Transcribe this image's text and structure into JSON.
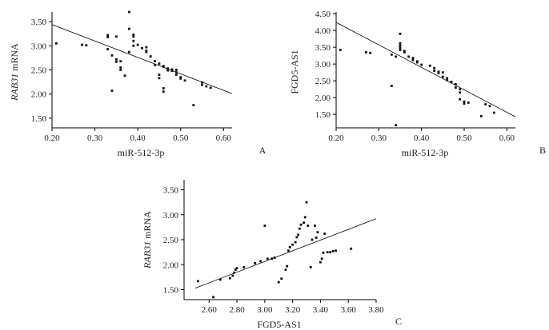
{
  "chart_data": [
    {
      "type": "scatter",
      "panel": "A",
      "xlabel": "miR-512-3p",
      "ylabel_parts": [
        {
          "text": "RAB31",
          "italic": true
        },
        {
          "text": " mRNA",
          "italic": false
        }
      ],
      "xlim": [
        0.2,
        0.62
      ],
      "ylim": [
        1.3,
        3.7
      ],
      "xticks": [
        0.2,
        0.3,
        0.4,
        0.5,
        0.6
      ],
      "xtick_labels": [
        "0.20",
        "0.30",
        "0.40",
        "0.50",
        "0.60"
      ],
      "yticks": [
        1.5,
        2.0,
        2.5,
        3.0,
        3.5
      ],
      "ytick_labels": [
        "1.50",
        "2.00",
        "2.50",
        "3.00",
        "3.50"
      ],
      "fit_line": {
        "x": [
          0.2,
          0.62
        ],
        "y": [
          3.44,
          2.01
        ]
      },
      "points": [
        [
          0.21,
          3.05
        ],
        [
          0.27,
          3.02
        ],
        [
          0.28,
          3.01
        ],
        [
          0.33,
          3.22
        ],
        [
          0.33,
          3.18
        ],
        [
          0.33,
          2.93
        ],
        [
          0.34,
          2.8
        ],
        [
          0.34,
          2.07
        ],
        [
          0.35,
          3.19
        ],
        [
          0.35,
          2.72
        ],
        [
          0.35,
          2.67
        ],
        [
          0.36,
          2.68
        ],
        [
          0.36,
          2.5
        ],
        [
          0.36,
          2.55
        ],
        [
          0.37,
          2.38
        ],
        [
          0.38,
          3.7
        ],
        [
          0.38,
          3.35
        ],
        [
          0.38,
          2.87
        ],
        [
          0.39,
          3.23
        ],
        [
          0.39,
          3.19
        ],
        [
          0.39,
          3.1
        ],
        [
          0.39,
          3.0
        ],
        [
          0.4,
          3.02
        ],
        [
          0.41,
          2.95
        ],
        [
          0.42,
          2.97
        ],
        [
          0.42,
          2.9
        ],
        [
          0.42,
          2.87
        ],
        [
          0.43,
          2.78
        ],
        [
          0.44,
          2.68
        ],
        [
          0.44,
          2.6
        ],
        [
          0.45,
          2.63
        ],
        [
          0.45,
          2.4
        ],
        [
          0.45,
          2.33
        ],
        [
          0.46,
          2.58
        ],
        [
          0.46,
          2.57
        ],
        [
          0.46,
          2.12
        ],
        [
          0.46,
          2.05
        ],
        [
          0.47,
          2.53
        ],
        [
          0.47,
          2.49
        ],
        [
          0.48,
          2.51
        ],
        [
          0.48,
          2.48
        ],
        [
          0.49,
          2.5
        ],
        [
          0.49,
          2.45
        ],
        [
          0.49,
          2.4
        ],
        [
          0.5,
          2.35
        ],
        [
          0.5,
          2.32
        ],
        [
          0.51,
          2.28
        ],
        [
          0.53,
          1.77
        ],
        [
          0.55,
          2.24
        ],
        [
          0.55,
          2.19
        ],
        [
          0.56,
          2.16
        ],
        [
          0.57,
          2.13
        ]
      ]
    },
    {
      "type": "scatter",
      "panel": "B",
      "xlabel": "miR-512-3p",
      "ylabel_parts": [
        {
          "text": "FGD5-AS1",
          "italic": false
        }
      ],
      "xlim": [
        0.2,
        0.62
      ],
      "ylim": [
        1.1,
        4.55
      ],
      "xticks": [
        0.2,
        0.3,
        0.4,
        0.5,
        0.6
      ],
      "xtick_labels": [
        "0.20",
        "0.30",
        "0.40",
        "0.50",
        "0.60"
      ],
      "yticks": [
        1.5,
        2.0,
        2.5,
        3.0,
        3.5,
        4.0,
        4.5
      ],
      "ytick_labels": [
        "1.50",
        "2.00",
        "2.50",
        "3.00",
        "3.50",
        "4.00",
        "4.50"
      ],
      "fit_line": {
        "x": [
          0.2,
          0.62
        ],
        "y": [
          4.24,
          1.43
        ]
      },
      "points": [
        [
          0.21,
          3.42
        ],
        [
          0.27,
          3.35
        ],
        [
          0.28,
          3.33
        ],
        [
          0.33,
          3.28
        ],
        [
          0.33,
          2.35
        ],
        [
          0.34,
          3.22
        ],
        [
          0.34,
          1.18
        ],
        [
          0.35,
          3.9
        ],
        [
          0.35,
          3.62
        ],
        [
          0.35,
          3.55
        ],
        [
          0.35,
          3.48
        ],
        [
          0.35,
          3.42
        ],
        [
          0.36,
          3.39
        ],
        [
          0.36,
          3.35
        ],
        [
          0.37,
          3.22
        ],
        [
          0.38,
          3.18
        ],
        [
          0.38,
          3.12
        ],
        [
          0.39,
          3.08
        ],
        [
          0.39,
          3.05
        ],
        [
          0.4,
          2.98
        ],
        [
          0.42,
          2.95
        ],
        [
          0.43,
          2.88
        ],
        [
          0.43,
          2.8
        ],
        [
          0.44,
          2.77
        ],
        [
          0.44,
          2.73
        ],
        [
          0.45,
          2.75
        ],
        [
          0.45,
          2.62
        ],
        [
          0.46,
          2.58
        ],
        [
          0.46,
          2.52
        ],
        [
          0.47,
          2.47
        ],
        [
          0.48,
          2.4
        ],
        [
          0.48,
          2.3
        ],
        [
          0.49,
          2.25
        ],
        [
          0.49,
          2.15
        ],
        [
          0.49,
          1.95
        ],
        [
          0.5,
          1.88
        ],
        [
          0.5,
          1.82
        ],
        [
          0.51,
          1.85
        ],
        [
          0.54,
          1.45
        ],
        [
          0.55,
          1.8
        ],
        [
          0.56,
          1.75
        ],
        [
          0.57,
          1.55
        ]
      ]
    },
    {
      "type": "scatter",
      "panel": "C",
      "xlabel": "FGD5-AS1",
      "ylabel_parts": [
        {
          "text": "RAB31",
          "italic": true
        },
        {
          "text": " mRNA",
          "italic": false
        }
      ],
      "xlim": [
        2.42,
        3.8
      ],
      "ylim": [
        1.3,
        3.7
      ],
      "xticks": [
        2.6,
        2.8,
        3.0,
        3.2,
        3.4,
        3.6,
        3.8
      ],
      "xtick_labels": [
        "2.60",
        "2.80",
        "3.00",
        "3.20",
        "3.40",
        "3.60",
        "3.80"
      ],
      "yticks": [
        1.5,
        2.0,
        2.5,
        3.0,
        3.5
      ],
      "ytick_labels": [
        "1.50",
        "2.00",
        "2.50",
        "3.00",
        "3.50"
      ],
      "fit_line": {
        "x": [
          2.5,
          3.8
        ],
        "y": [
          1.53,
          2.92
        ]
      },
      "points": [
        [
          2.52,
          1.67
        ],
        [
          2.63,
          1.35
        ],
        [
          2.68,
          1.7
        ],
        [
          2.75,
          1.73
        ],
        [
          2.77,
          1.78
        ],
        [
          2.78,
          1.84
        ],
        [
          2.79,
          1.9
        ],
        [
          2.8,
          1.93
        ],
        [
          2.85,
          1.95
        ],
        [
          2.93,
          2.03
        ],
        [
          2.97,
          2.07
        ],
        [
          3.0,
          2.78
        ],
        [
          3.02,
          2.12
        ],
        [
          3.05,
          2.12
        ],
        [
          3.07,
          2.14
        ],
        [
          3.1,
          1.65
        ],
        [
          3.12,
          1.72
        ],
        [
          3.15,
          1.9
        ],
        [
          3.16,
          1.97
        ],
        [
          3.17,
          2.28
        ],
        [
          3.18,
          2.35
        ],
        [
          3.2,
          2.4
        ],
        [
          3.22,
          2.45
        ],
        [
          3.23,
          2.55
        ],
        [
          3.24,
          2.6
        ],
        [
          3.25,
          2.72
        ],
        [
          3.26,
          2.8
        ],
        [
          3.28,
          2.84
        ],
        [
          3.29,
          2.95
        ],
        [
          3.3,
          3.25
        ],
        [
          3.31,
          2.78
        ],
        [
          3.33,
          1.95
        ],
        [
          3.34,
          2.5
        ],
        [
          3.36,
          2.78
        ],
        [
          3.37,
          2.54
        ],
        [
          3.38,
          2.65
        ],
        [
          3.4,
          2.05
        ],
        [
          3.41,
          2.12
        ],
        [
          3.42,
          2.24
        ],
        [
          3.43,
          2.62
        ],
        [
          3.45,
          2.25
        ],
        [
          3.47,
          2.25
        ],
        [
          3.49,
          2.27
        ],
        [
          3.51,
          2.28
        ],
        [
          3.62,
          2.32
        ]
      ]
    }
  ]
}
